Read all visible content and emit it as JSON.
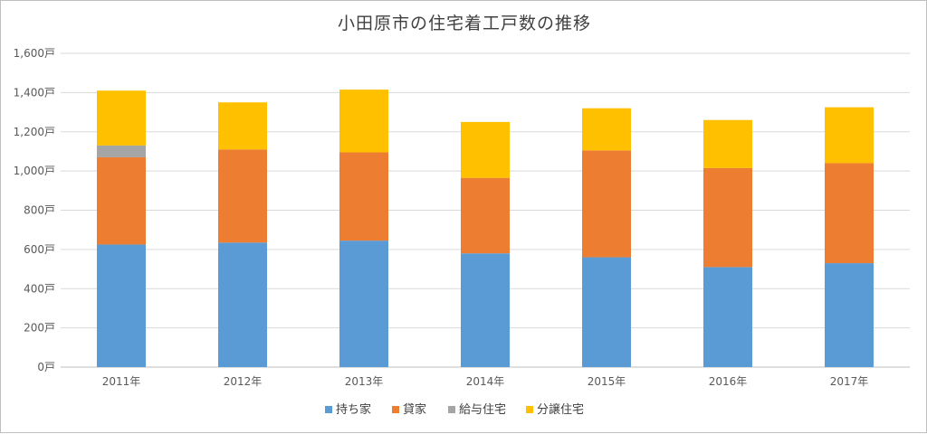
{
  "chart_data": {
    "type": "bar",
    "stacked": true,
    "title": "小田原市の住宅着工戸数の推移",
    "categories": [
      "2011年",
      "2012年",
      "2013年",
      "2014年",
      "2015年",
      "2016年",
      "2017年"
    ],
    "series": [
      {
        "name": "持ち家",
        "color": "#5b9bd5",
        "values": [
          625,
          635,
          645,
          580,
          560,
          510,
          530
        ]
      },
      {
        "name": "貸家",
        "color": "#ed7d31",
        "values": [
          445,
          475,
          450,
          385,
          545,
          505,
          510
        ]
      },
      {
        "name": "給与住宅",
        "color": "#a5a5a5",
        "values": [
          60,
          0,
          0,
          0,
          0,
          0,
          0
        ]
      },
      {
        "name": "分譲住宅",
        "color": "#ffc000",
        "values": [
          280,
          240,
          320,
          285,
          215,
          245,
          285
        ]
      }
    ],
    "ylim": [
      0,
      1600
    ],
    "yticks": [
      0,
      200,
      400,
      600,
      800,
      1000,
      1200,
      1400,
      1600
    ],
    "ytick_labels": [
      "0戸",
      "200戸",
      "400戸",
      "600戸",
      "800戸",
      "1,000戸",
      "1,200戸",
      "1,400戸",
      "1,600戸"
    ],
    "grid": true,
    "legend": "bottom"
  }
}
